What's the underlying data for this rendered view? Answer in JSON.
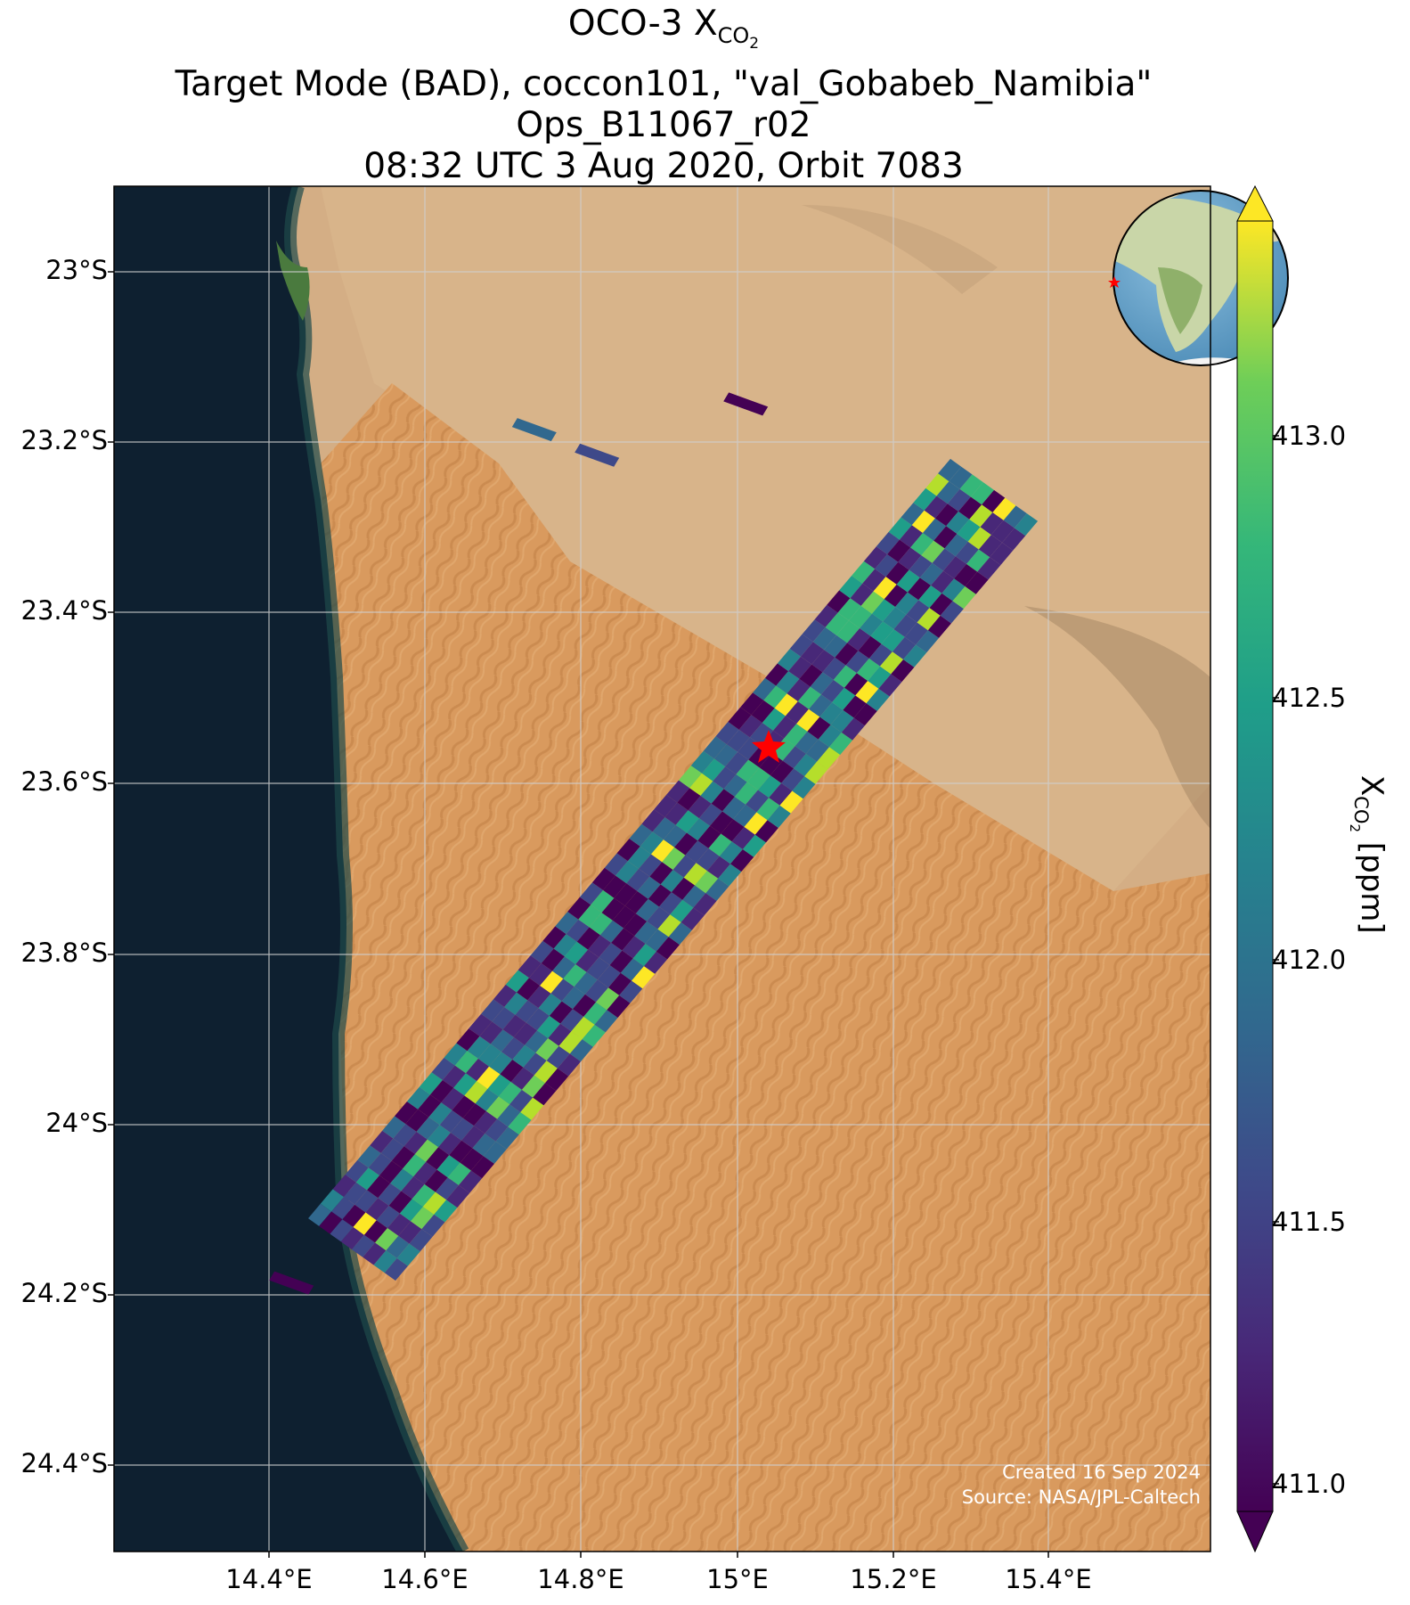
{
  "title": {
    "line1_prefix": "OCO-3 X",
    "line1_sub": "CO",
    "line1_subsub": "2",
    "line2": "Target Mode (BAD), coccon101, \"val_Gobabeb_Namibia\"",
    "line3": "Ops_B11067_r02",
    "line4": "08:32 UTC 3 Aug 2020, Orbit 7083"
  },
  "map": {
    "region": "Namib Desert coast, Namibia",
    "lon_range": [
      14.2,
      15.6
    ],
    "lat_range": [
      -24.5,
      -22.9
    ],
    "basemap": "satellite imagery",
    "colors": {
      "ocean": "#0e2030",
      "sand": "#d99a5e",
      "plain": "#d4ae85",
      "site_marker": "#ff0000"
    },
    "site_marker": {
      "icon": "star",
      "lon": 15.04,
      "lat": -23.56
    },
    "yticks": [
      "23°S",
      "23.2°S",
      "23.4°S",
      "23.6°S",
      "23.8°S",
      "24°S",
      "24.2°S",
      "24.4°S"
    ],
    "xticks": [
      "14.4°E",
      "14.6°E",
      "14.8°E",
      "15°E",
      "15.2°E",
      "15.4°E"
    ],
    "inset_globe": {
      "icon": "globe-africa-icon",
      "marker": "star"
    }
  },
  "credit": {
    "line1": "Created 16 Sep 2024",
    "line2": "Source: NASA/JPL-Caltech"
  },
  "colorbar": {
    "label_prefix": "X",
    "label_sub": "CO",
    "label_subsub": "2",
    "label_suffix": " [ppm]",
    "ticks": [
      "413.0",
      "412.5",
      "412.0",
      "411.5",
      "411.0"
    ],
    "range": [
      410.94,
      413.3
    ],
    "colormap": "viridis",
    "extend": "both"
  },
  "chart_data": {
    "type": "heatmap",
    "description_units": "XCO2 ppm",
    "variable": "XCO2",
    "units": "ppm",
    "value_range": [
      411.0,
      413.2
    ],
    "swath": {
      "start": {
        "lon": 14.5,
        "lat": -24.15
      },
      "end": {
        "lon": 15.32,
        "lat": -23.26
      }
    },
    "outlier_footprints": [
      {
        "lon": 14.74,
        "lat": -23.18,
        "value": 411.8
      },
      {
        "lon": 14.82,
        "lat": -23.21,
        "value": 411.6
      },
      {
        "lon": 15.01,
        "lat": -23.15,
        "value": 411.0
      },
      {
        "lon": 14.43,
        "lat": -24.18,
        "value": 411.0
      }
    ]
  }
}
